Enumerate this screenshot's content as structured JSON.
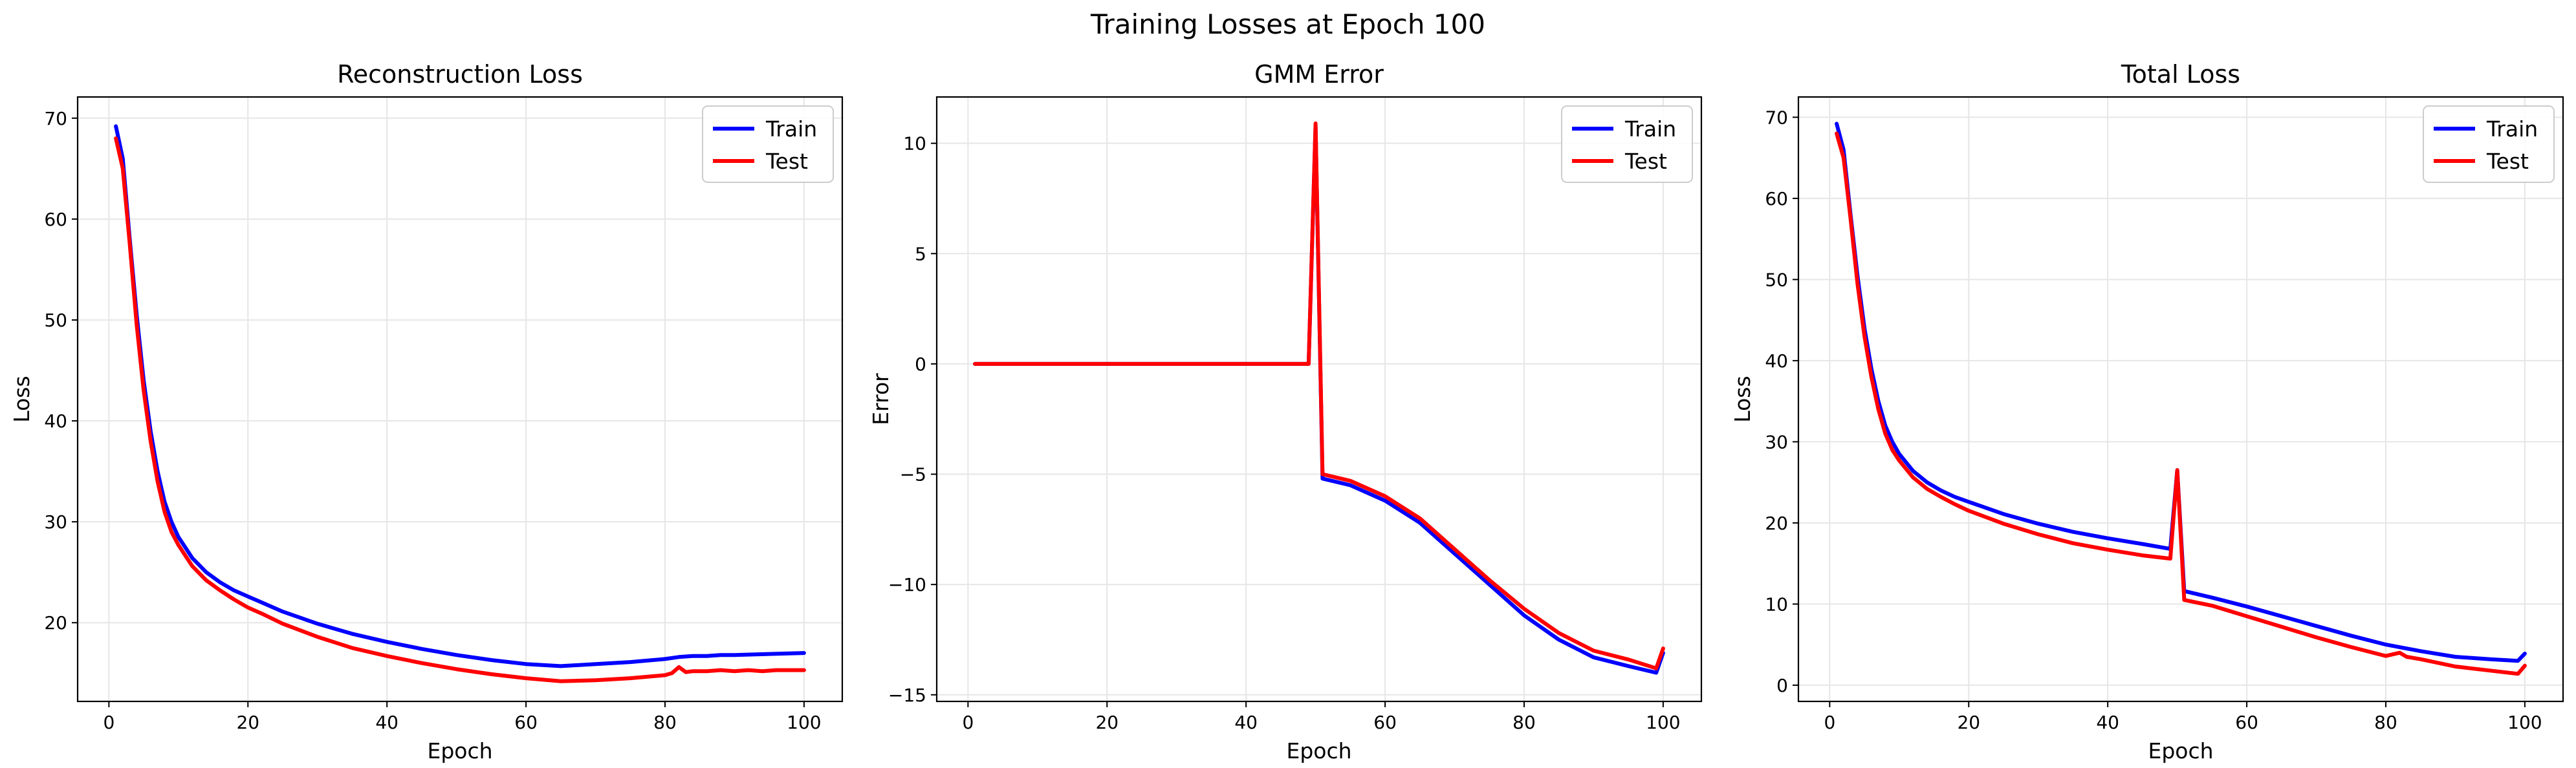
{
  "suptitle": "Training Losses at Epoch 100",
  "colors": {
    "train": "#0000ff",
    "test": "#ff0000",
    "grid": "#e6e6e6",
    "axis": "#000000"
  },
  "chart_data": [
    {
      "type": "line",
      "title": "Reconstruction Loss",
      "xlabel": "Epoch",
      "ylabel": "Loss",
      "xlim": [
        -4.5,
        105.5
      ],
      "ylim": [
        12.2,
        72.1
      ],
      "xticks": [
        0,
        20,
        40,
        60,
        80,
        100
      ],
      "yticks": [
        20,
        30,
        40,
        50,
        60,
        70
      ],
      "grid": true,
      "legend": "top-right",
      "series": [
        {
          "name": "Train",
          "color": "#0000ff",
          "x": [
            1,
            2,
            3,
            4,
            5,
            6,
            7,
            8,
            9,
            10,
            12,
            14,
            16,
            18,
            20,
            22,
            25,
            30,
            35,
            40,
            45,
            50,
            55,
            60,
            65,
            70,
            75,
            80,
            82,
            84,
            86,
            88,
            90,
            95,
            100
          ],
          "y": [
            69.2,
            66.0,
            58.0,
            50.5,
            44.0,
            39.0,
            35.0,
            32.0,
            30.0,
            28.5,
            26.4,
            25.0,
            24.0,
            23.2,
            22.6,
            22.0,
            21.1,
            19.9,
            18.9,
            18.1,
            17.4,
            16.8,
            16.3,
            15.9,
            15.7,
            15.9,
            16.1,
            16.4,
            16.6,
            16.7,
            16.7,
            16.8,
            16.8,
            16.9,
            17.0
          ]
        },
        {
          "name": "Test",
          "color": "#ff0000",
          "x": [
            1,
            2,
            3,
            4,
            5,
            6,
            7,
            8,
            9,
            10,
            12,
            14,
            16,
            18,
            20,
            22,
            25,
            30,
            35,
            40,
            45,
            50,
            55,
            60,
            65,
            70,
            75,
            80,
            81,
            82,
            83,
            84,
            86,
            88,
            90,
            92,
            94,
            96,
            98,
            100
          ],
          "y": [
            68.0,
            65.0,
            57.5,
            49.5,
            43.0,
            38.0,
            34.0,
            31.0,
            29.0,
            27.7,
            25.6,
            24.2,
            23.2,
            22.3,
            21.5,
            20.9,
            19.9,
            18.6,
            17.5,
            16.7,
            16.0,
            15.4,
            14.9,
            14.5,
            14.2,
            14.3,
            14.5,
            14.8,
            15.0,
            15.6,
            15.1,
            15.2,
            15.2,
            15.3,
            15.2,
            15.3,
            15.2,
            15.3,
            15.3,
            15.3
          ]
        }
      ]
    },
    {
      "type": "line",
      "title": "GMM Error",
      "xlabel": "Epoch",
      "ylabel": "Error",
      "xlim": [
        -4.5,
        105.5
      ],
      "ylim": [
        -15.3,
        12.1
      ],
      "xticks": [
        0,
        20,
        40,
        60,
        80,
        100
      ],
      "yticks": [
        -15,
        -10,
        -5,
        0,
        5,
        10
      ],
      "grid": true,
      "legend": "top-right",
      "series": [
        {
          "name": "Train",
          "color": "#0000ff",
          "x": [
            1,
            10,
            20,
            30,
            40,
            49,
            50,
            51,
            55,
            60,
            65,
            70,
            75,
            80,
            85,
            90,
            95,
            99,
            100
          ],
          "y": [
            0,
            0,
            0,
            0,
            0,
            0,
            10.8,
            -5.2,
            -5.5,
            -6.2,
            -7.2,
            -8.6,
            -10.0,
            -11.4,
            -12.5,
            -13.3,
            -13.7,
            -14.0,
            -13.1
          ]
        },
        {
          "name": "Test",
          "color": "#ff0000",
          "x": [
            1,
            10,
            20,
            30,
            40,
            49,
            50,
            51,
            55,
            60,
            65,
            70,
            75,
            80,
            85,
            90,
            95,
            99,
            100
          ],
          "y": [
            0,
            0,
            0,
            0,
            0,
            0,
            10.9,
            -5.0,
            -5.3,
            -6.0,
            -7.0,
            -8.4,
            -9.8,
            -11.1,
            -12.2,
            -13.0,
            -13.4,
            -13.8,
            -12.9
          ]
        }
      ]
    },
    {
      "type": "line",
      "title": "Total Loss",
      "xlabel": "Epoch",
      "ylabel": "Loss",
      "xlim": [
        -4.5,
        105.5
      ],
      "ylim": [
        -2.0,
        72.5
      ],
      "xticks": [
        0,
        20,
        40,
        60,
        80,
        100
      ],
      "yticks": [
        0,
        10,
        20,
        30,
        40,
        50,
        60,
        70
      ],
      "grid": true,
      "legend": "top-right",
      "series": [
        {
          "name": "Train",
          "color": "#0000ff",
          "x": [
            1,
            2,
            3,
            4,
            5,
            6,
            7,
            8,
            9,
            10,
            12,
            14,
            16,
            18,
            20,
            25,
            30,
            35,
            40,
            45,
            49,
            50,
            51,
            55,
            60,
            65,
            70,
            75,
            80,
            85,
            90,
            95,
            99,
            100
          ],
          "y": [
            69.2,
            66.0,
            58.0,
            50.5,
            44.0,
            39.0,
            35.0,
            32.0,
            30.0,
            28.5,
            26.4,
            25.0,
            24.0,
            23.2,
            22.6,
            21.1,
            19.9,
            18.9,
            18.1,
            17.4,
            16.8,
            26.5,
            11.6,
            10.8,
            9.7,
            8.5,
            7.3,
            6.1,
            5.0,
            4.2,
            3.5,
            3.2,
            3.0,
            3.9
          ]
        },
        {
          "name": "Test",
          "color": "#ff0000",
          "x": [
            1,
            2,
            3,
            4,
            5,
            6,
            7,
            8,
            9,
            10,
            12,
            14,
            16,
            18,
            20,
            25,
            30,
            35,
            40,
            45,
            49,
            50,
            51,
            55,
            60,
            65,
            70,
            75,
            80,
            82,
            83,
            85,
            90,
            95,
            99,
            100
          ],
          "y": [
            68.0,
            65.0,
            57.5,
            49.5,
            43.0,
            38.0,
            34.0,
            31.0,
            29.0,
            27.7,
            25.6,
            24.2,
            23.2,
            22.3,
            21.5,
            19.9,
            18.6,
            17.5,
            16.7,
            16.0,
            15.6,
            26.5,
            10.5,
            9.8,
            8.5,
            7.2,
            5.9,
            4.7,
            3.6,
            4.0,
            3.5,
            3.2,
            2.3,
            1.8,
            1.4,
            2.4
          ]
        }
      ]
    }
  ]
}
